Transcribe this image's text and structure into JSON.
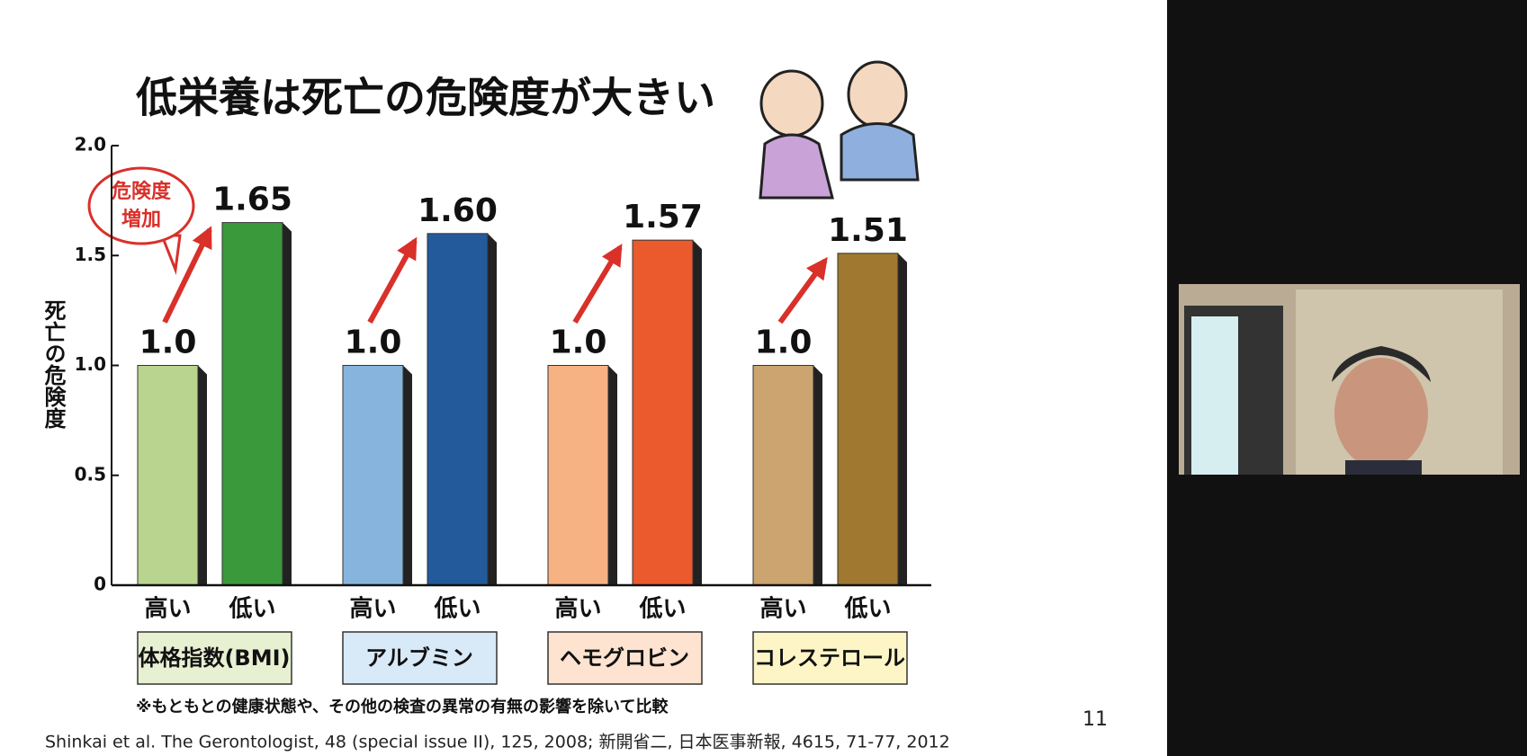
{
  "slide": {
    "title": "低栄養は死亡の危険度が大きい",
    "callout": [
      "危険度",
      "増加"
    ],
    "footnote": "※もともとの健康状態や、その他の検査の異常の有無の影響を除いて比較",
    "citation": "Shinkai et al. The Gerontologist, 48 (special issue II), 125, 2008; 新開省二, 日本医事新報, 4615, 71-77, 2012",
    "page_number": "11"
  },
  "chart_data": {
    "type": "bar",
    "y_label": "死亡の危険度",
    "categories": [
      "高い",
      "低い"
    ],
    "ylim": [
      0,
      2
    ],
    "yticks": [
      0,
      0.5,
      {
        "value": 1,
        "label": "1.0"
      },
      1.5,
      {
        "value": 2,
        "label": "2.0"
      }
    ],
    "series": [
      {
        "name": "体格指数(BMI)",
        "colors": [
          "#b9d48f",
          "#3a9a3b"
        ],
        "box_color": "#e8f0d2",
        "values": [
          1,
          1.65
        ],
        "value_labels": [
          "1.0",
          "1.65"
        ]
      },
      {
        "name": "アルブミン",
        "colors": [
          "#86b4dc",
          "#235a9b"
        ],
        "box_color": "#d8e9f7",
        "values": [
          1,
          1.6
        ],
        "value_labels": [
          "1.0",
          "1.60"
        ]
      },
      {
        "name": "ヘモグロビン",
        "colors": [
          "#f7b283",
          "#ea5a2c"
        ],
        "box_color": "#fde3d0",
        "values": [
          1,
          1.57
        ],
        "value_labels": [
          "1.0",
          "1.57"
        ]
      },
      {
        "name": "コレステロール",
        "colors": [
          "#cba46f",
          "#a0782f"
        ],
        "box_color": "#fdf5c6",
        "values": [
          1,
          1.51
        ],
        "value_labels": [
          "1.0",
          "1.51"
        ]
      }
    ]
  }
}
